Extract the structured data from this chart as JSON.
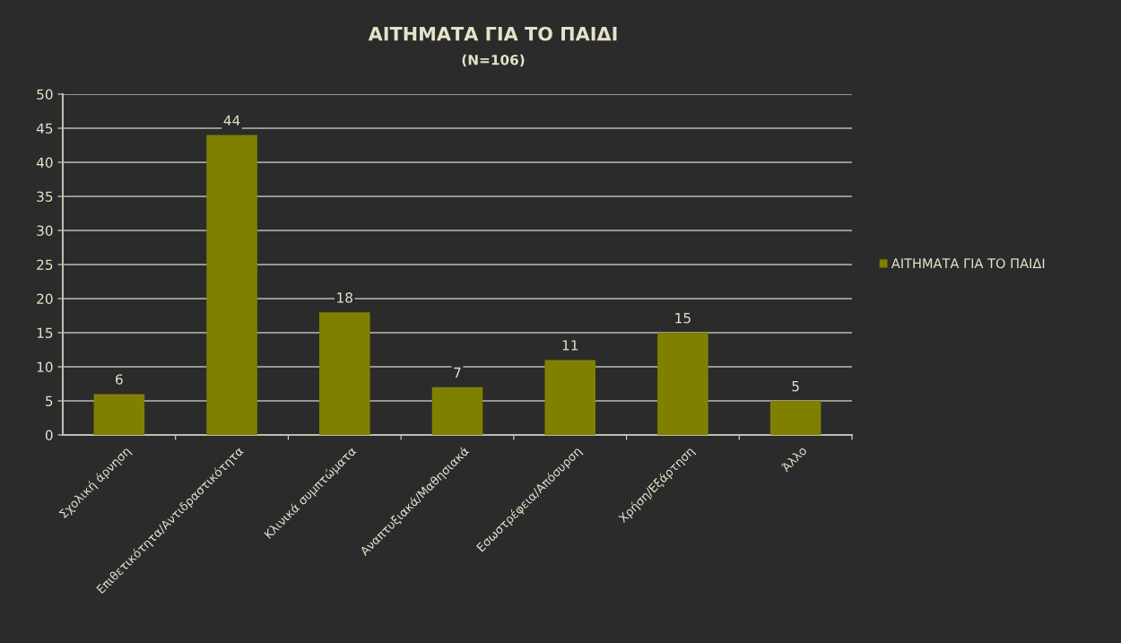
{
  "chart_data": {
    "type": "bar",
    "title": "ΑΙΤΗΜΑΤΑ ΓΙΑ ΤΟ ΠΑΙΔΙ",
    "subtitle": "(N=106)",
    "categories": [
      "Σχολική άρνηση",
      "Επιθετικότητα/Αντιδραστικότητα",
      "Κλινικά συμπτώματα",
      "Αναπτυξιακά/Μαθησιακά",
      "Εσωστρέφεια/Απόσυρση",
      "Χρήση/Εξάρτηση",
      "Άλλο"
    ],
    "series": [
      {
        "name": "ΑΙΤΗΜΑΤΑ ΓΙΑ ΤΟ ΠΑΙΔΙ",
        "color": "#808000",
        "values": [
          6,
          44,
          18,
          7,
          11,
          15,
          5
        ]
      }
    ],
    "ylim": [
      0,
      50
    ],
    "yticks": [
      0,
      5,
      10,
      15,
      20,
      25,
      30,
      35,
      40,
      45,
      50
    ],
    "grid": "y",
    "legend": "right",
    "data_labels": true
  }
}
